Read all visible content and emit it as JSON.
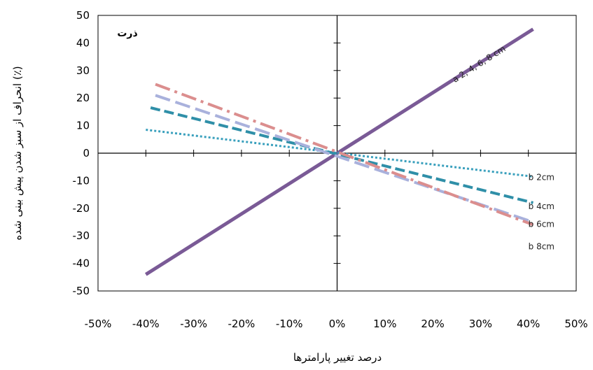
{
  "chart_data": {
    "type": "line",
    "title": "",
    "panel_label": "ذرت",
    "xlabel": "درصد تغییر پارامترها",
    "ylabel": "انحراف از سبز شدن پیش بینی شده (٪)",
    "xlim": [
      -50,
      50
    ],
    "ylim": [
      -50,
      50
    ],
    "x_ticks": [
      -50,
      -40,
      -30,
      -20,
      -10,
      0,
      10,
      20,
      30,
      40,
      50
    ],
    "x_tick_labels": [
      "-50%",
      "-40%",
      "-30%",
      "-20%",
      "-10%",
      "0%",
      "10%",
      "20%",
      "30%",
      "40%",
      "50%"
    ],
    "y_ticks": [
      50,
      40,
      30,
      20,
      10,
      0,
      -10,
      -20,
      -30,
      -40,
      -50
    ],
    "y_tick_labels": [
      "50",
      "40",
      "30",
      "20",
      "10",
      "0",
      "-10",
      "-20",
      "-30",
      "-40",
      "-50"
    ],
    "grid": false,
    "legend": "none",
    "series": [
      {
        "name": "a 2, 4, 6, 8 cm",
        "color": "#7a5a96",
        "dash": "solid",
        "x": [
          -40,
          41
        ],
        "y": [
          -44,
          45
        ]
      },
      {
        "name": "b 2cm",
        "color": "#3aa0bd",
        "dash": "dotted",
        "x": [
          -40,
          41
        ],
        "y": [
          8.5,
          -8.5
        ]
      },
      {
        "name": "b 4cm",
        "color": "#2f8fa8",
        "dash": "dashed",
        "x": [
          -39,
          41
        ],
        "y": [
          16.5,
          -18
        ]
      },
      {
        "name": "b 6cm",
        "color": "#a9b1dc",
        "dash": "longdash",
        "x": [
          -38,
          41
        ],
        "y": [
          21,
          -25
        ]
      },
      {
        "name": "b 8cm",
        "color": "#db8e8e",
        "dash": "dashdot",
        "x": [
          -38,
          41
        ],
        "y": [
          25,
          -26
        ]
      }
    ]
  }
}
